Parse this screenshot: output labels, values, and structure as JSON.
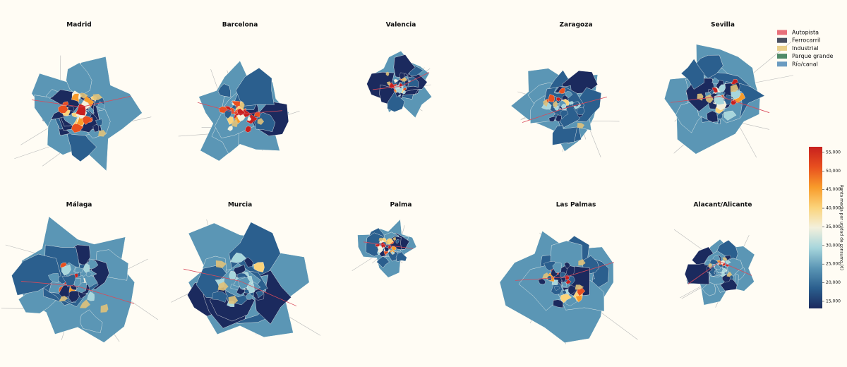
{
  "panels": [
    {
      "title": "Madrid"
    },
    {
      "title": "Barcelona"
    },
    {
      "title": "Valencia"
    },
    {
      "title": "Zaragoza"
    },
    {
      "title": "Sevilla"
    },
    {
      "title": "Málaga"
    },
    {
      "title": "Murcia"
    },
    {
      "title": "Palma"
    },
    {
      "title": "Las Palmas"
    },
    {
      "title": "Alacant/Alicante"
    }
  ],
  "legend": {
    "items": [
      {
        "label": "Autopista",
        "color": "#e8707a"
      },
      {
        "label": "Ferrocarril",
        "color": "#4a5060"
      },
      {
        "label": "Industrial",
        "color": "#e9cf8a"
      },
      {
        "label": "Parque grande",
        "color": "#4f8a68"
      },
      {
        "label": "Río/canal",
        "color": "#6a9bc0"
      }
    ]
  },
  "colorbar": {
    "label": "Renta media por unidad de consumo (€)",
    "vlim": [
      13100,
      56500
    ],
    "colors": [
      "#1b2a5e",
      "#2b5f8e",
      "#5b96b5",
      "#a7d6dc",
      "#f3f0dc",
      "#fbd37a",
      "#f89b2a",
      "#e8501f",
      "#c8201e"
    ],
    "ticks": [
      {
        "value": 15000,
        "label": "15,000"
      },
      {
        "value": 20000,
        "label": "20,000"
      },
      {
        "value": 25000,
        "label": "25,000"
      },
      {
        "value": 30000,
        "label": "30,000"
      },
      {
        "value": 35000,
        "label": "35,000"
      },
      {
        "value": 40000,
        "label": "40,000"
      },
      {
        "value": 45000,
        "label": "45,000"
      },
      {
        "value": 50000,
        "label": "50,000"
      },
      {
        "value": 55000,
        "label": "55,000"
      }
    ]
  }
}
